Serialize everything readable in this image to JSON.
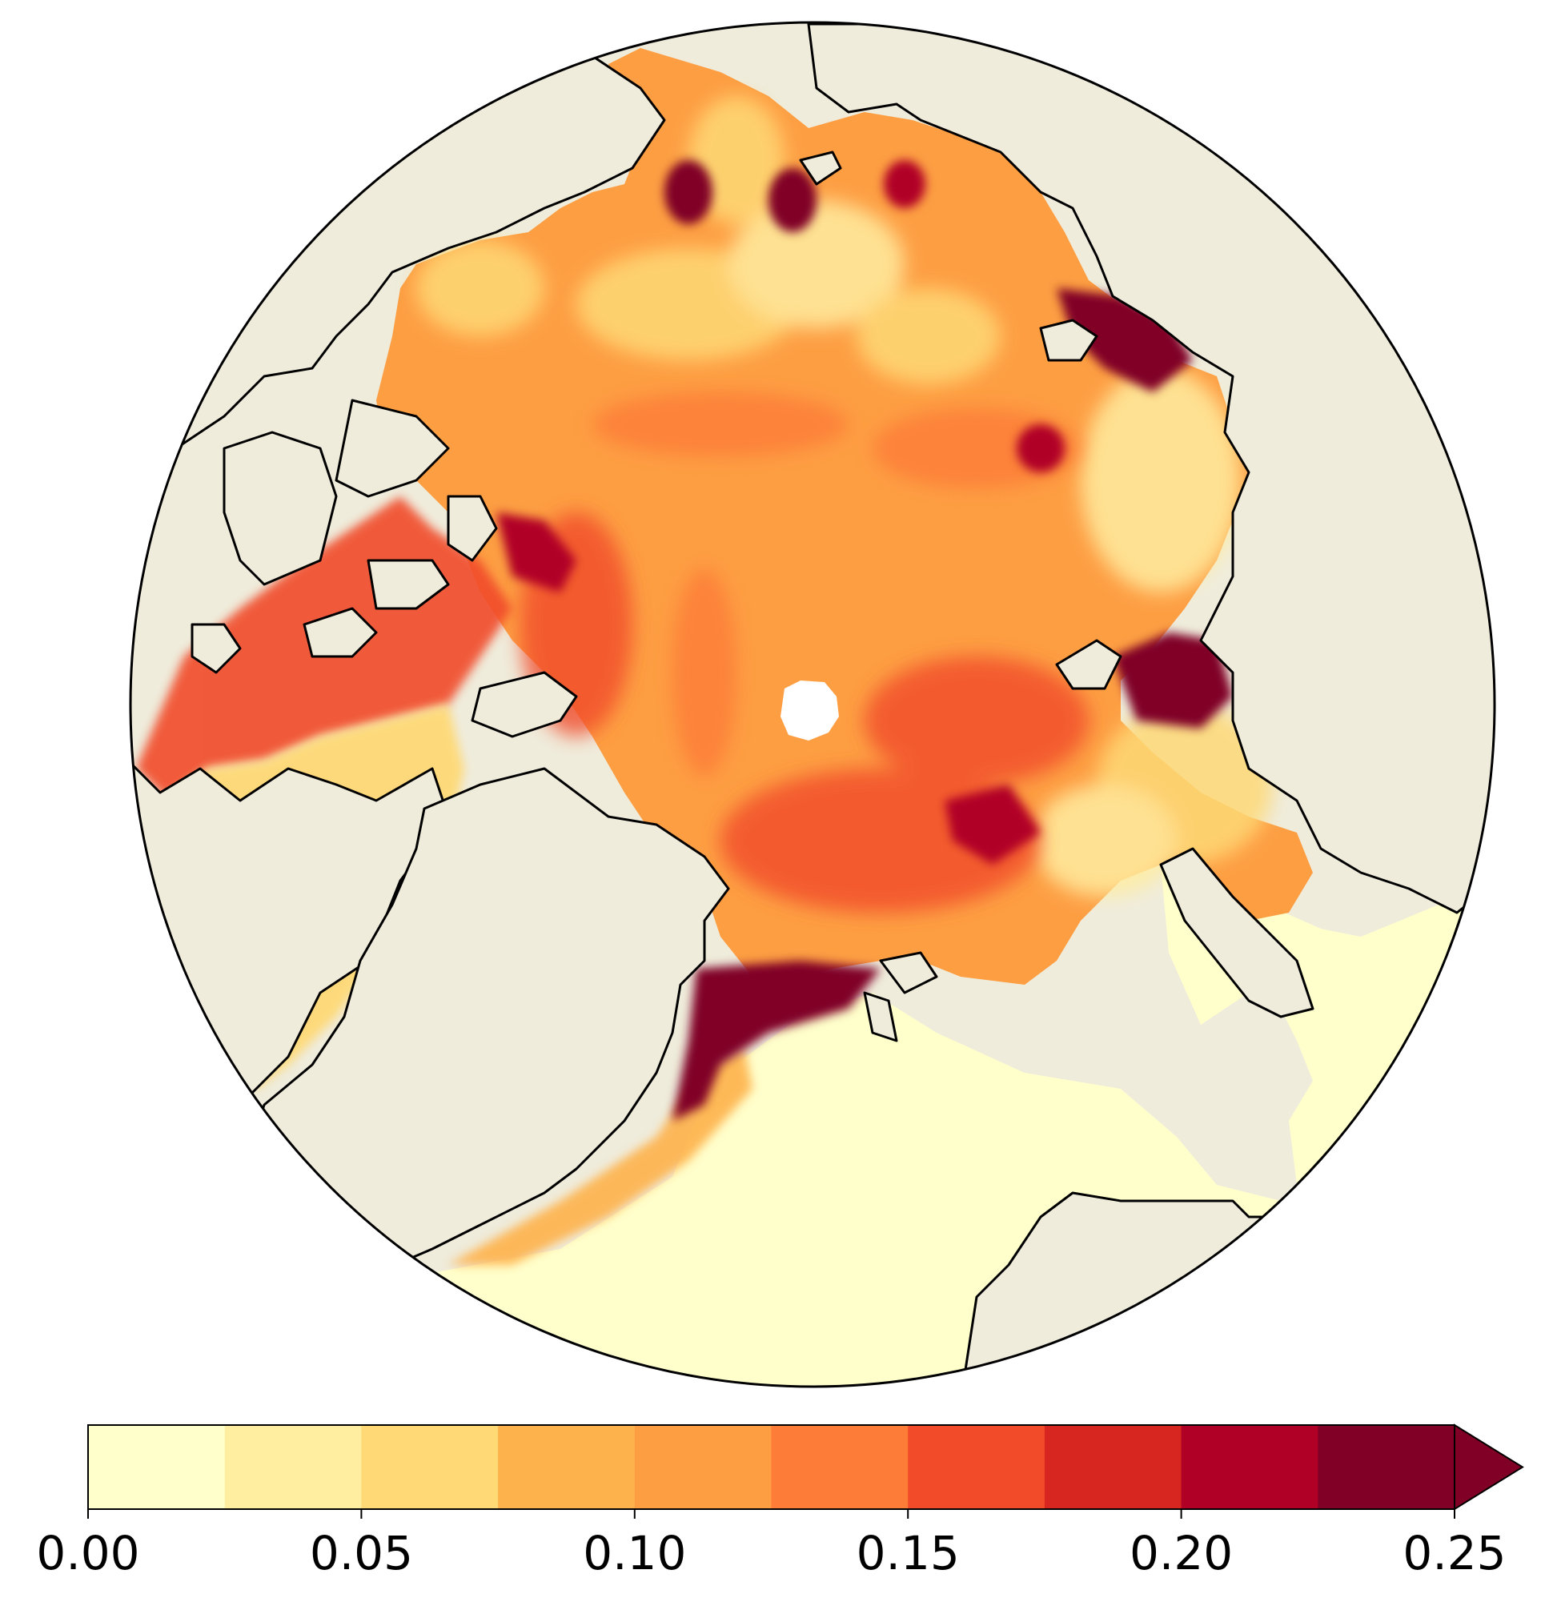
{
  "map": {
    "projection": "north-polar-stereographic",
    "background_land_color": "#efecdc",
    "ocean_low_color": "#ffffcc",
    "pole_hole_color": "#ffffff",
    "regions": [
      {
        "id": "central-arctic",
        "level_range": [
          0.1,
          0.125
        ]
      },
      {
        "id": "greenland-siberian-boundary",
        "level_range": [
          0.2,
          0.25
        ]
      },
      {
        "id": "atlantic-sector",
        "level_range": [
          0.0,
          0.025
        ]
      }
    ]
  },
  "colorbar": {
    "levels": [
      0.0,
      0.025,
      0.05,
      0.075,
      0.1,
      0.125,
      0.15,
      0.175,
      0.2,
      0.225,
      0.25
    ],
    "colors": [
      "#ffffcc",
      "#ffeda0",
      "#fed976",
      "#feb24c",
      "#fd9e43",
      "#fd7c37",
      "#f14b2a",
      "#d7261f",
      "#b10026",
      "#800026"
    ],
    "extend": "max",
    "ticks": [
      "0.00",
      "0.05",
      "0.10",
      "0.15",
      "0.20",
      "0.25"
    ]
  }
}
